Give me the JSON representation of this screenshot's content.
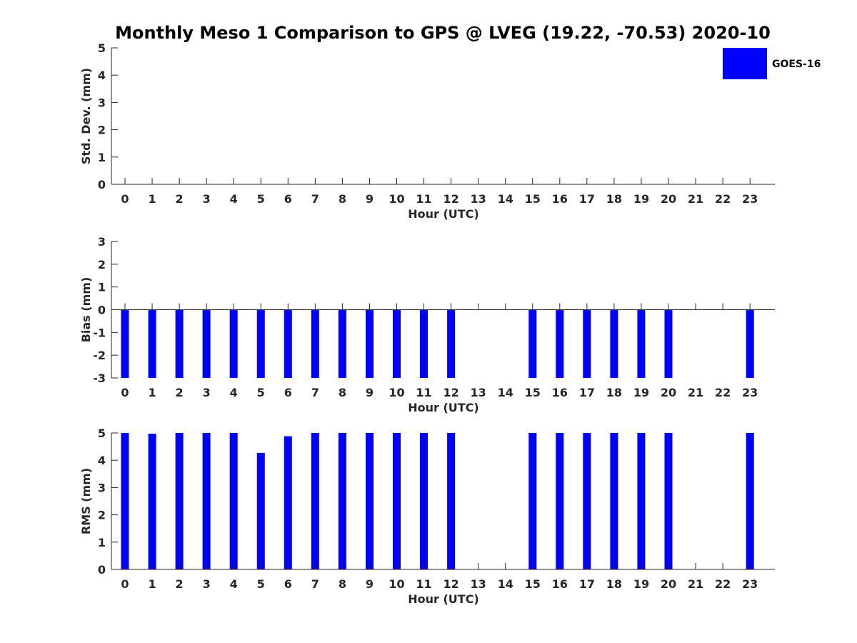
{
  "chart_data": {
    "type": "bar",
    "title": "Monthly Meso 1 Comparison to GPS @ LVEG (19.22, -70.53) 2020-10",
    "legend": {
      "entries": [
        "GOES-16"
      ],
      "placement": "top-right"
    },
    "series_color": "#0000ff",
    "categories": [
      "0",
      "1",
      "2",
      "3",
      "4",
      "5",
      "6",
      "7",
      "8",
      "9",
      "10",
      "11",
      "12",
      "13",
      "14",
      "15",
      "16",
      "17",
      "18",
      "19",
      "20",
      "21",
      "22",
      "23"
    ],
    "panels": [
      {
        "ylabel": "Std. Dev. (mm)",
        "xlabel": "Hour (UTC)",
        "ylim": [
          0,
          5
        ],
        "yticks": [
          "0",
          "1",
          "2",
          "3",
          "4",
          "5"
        ],
        "series": [
          {
            "name": "GOES-16",
            "values": [
              null,
              null,
              null,
              null,
              null,
              null,
              null,
              null,
              null,
              null,
              null,
              null,
              null,
              null,
              null,
              null,
              null,
              null,
              null,
              null,
              null,
              null,
              null,
              null
            ]
          }
        ]
      },
      {
        "ylabel": "Bias (mm)",
        "xlabel": "Hour (UTC)",
        "ylim": [
          -3,
          3
        ],
        "yticks": [
          "-3",
          "-2",
          "-1",
          "0",
          "1",
          "2",
          "3"
        ],
        "series": [
          {
            "name": "GOES-16",
            "values": [
              -3,
              -3,
              -3,
              -3,
              -3,
              -3,
              -3,
              -3,
              -3,
              -3,
              -3,
              -3,
              -3,
              null,
              null,
              -3,
              -3,
              -3,
              -3,
              -3,
              -3,
              null,
              null,
              -3
            ]
          }
        ]
      },
      {
        "ylabel": "RMS (mm)",
        "xlabel": "Hour (UTC)",
        "ylim": [
          0,
          5
        ],
        "yticks": [
          "0",
          "1",
          "2",
          "3",
          "4",
          "5"
        ],
        "series": [
          {
            "name": "GOES-16",
            "values": [
              5,
              4.97,
              5,
              5,
              5,
              4.27,
              4.88,
              5,
              5,
              5,
              5,
              5,
              5,
              null,
              null,
              5,
              5,
              5,
              5,
              5,
              5,
              null,
              null,
              5
            ]
          }
        ]
      }
    ]
  }
}
